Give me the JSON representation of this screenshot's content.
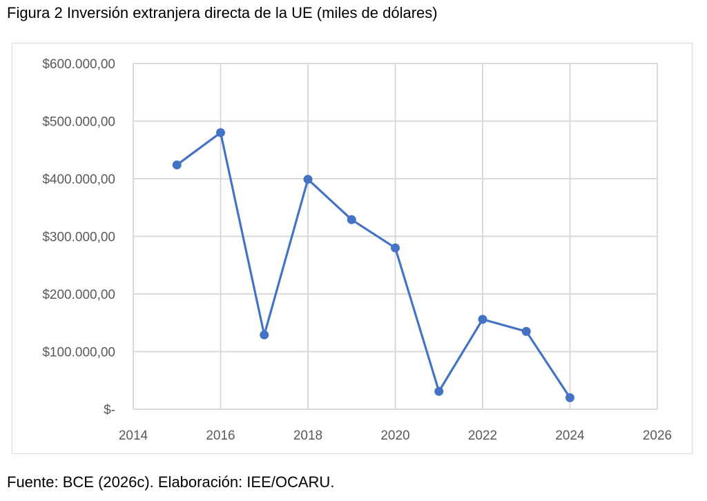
{
  "title": "Figura 2 Inversión extranjera directa de la UE (miles de dólares)",
  "source": "Fuente: BCE (2026c). Elaboración: IEE/OCARU.",
  "chart_data": {
    "type": "scatter",
    "mode": "lines+markers",
    "title": "Figura 2 Inversión extranjera directa de la UE (miles de dólares)",
    "xlabel": "",
    "ylabel": "",
    "xlim": [
      2014,
      2026
    ],
    "ylim": [
      0,
      600000
    ],
    "grid": true,
    "x_ticks": [
      2014,
      2016,
      2018,
      2020,
      2022,
      2024,
      2026
    ],
    "x_tick_labels": [
      "2014",
      "2016",
      "2018",
      "2020",
      "2022",
      "2024",
      "2026"
    ],
    "y_ticks": [
      0,
      100000,
      200000,
      300000,
      400000,
      500000,
      600000
    ],
    "y_tick_labels": [
      "$-",
      "$100.000,00",
      "$200.000,00",
      "$300.000,00",
      "$400.000,00",
      "$500.000,00",
      "$600.000,00"
    ],
    "series": [
      {
        "name": "Inversión extranjera directa de la UE",
        "color": "#4472c4",
        "x": [
          2015,
          2016,
          2017,
          2018,
          2019,
          2020,
          2021,
          2022,
          2023,
          2024
        ],
        "y": [
          424000,
          480000,
          129000,
          399000,
          329000,
          280000,
          31000,
          156000,
          135000,
          20000
        ]
      }
    ]
  }
}
